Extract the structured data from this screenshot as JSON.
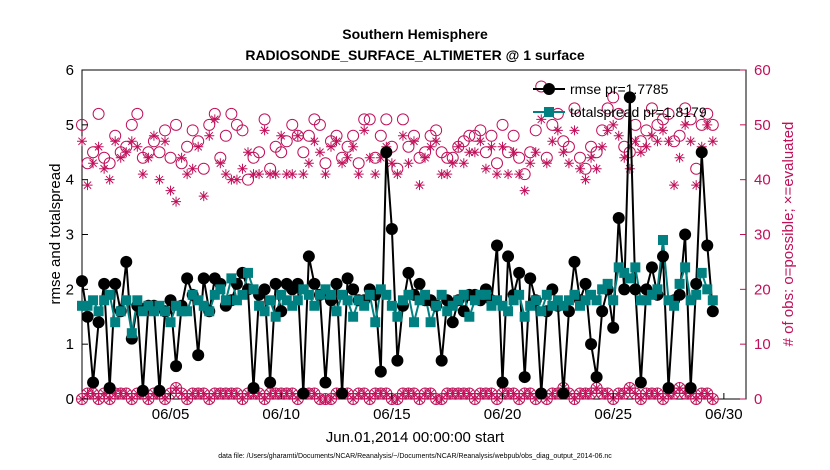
{
  "chart_data": {
    "type": "line",
    "title": "Southern Hemisphere",
    "subtitle": "RADIOSONDE_SURFACE_ALTIMETER @ 1 surface",
    "xlabel": "Jun.01,2014 00:00:00 start",
    "ylabel_left": "rmse and totalspread",
    "ylabel_right": "# of obs: o=possible; ×=evaluated",
    "footer": "data file: /Users/gharamti/Documents/NCAR/Reanalysis/~/Documents/NCAR/Reanalysis/webpub/obs_diag_output_2014-06.nc",
    "xlim": [
      1,
      31
    ],
    "ylim_left": [
      0,
      6
    ],
    "ylim_right": [
      0,
      60
    ],
    "x_ticks": [
      5,
      10,
      15,
      20,
      25,
      30
    ],
    "x_tick_labels": [
      "06/05",
      "06/10",
      "06/15",
      "06/20",
      "06/25",
      "06/30"
    ],
    "y_ticks_left": [
      "0",
      "1",
      "2",
      "3",
      "4",
      "5",
      "6"
    ],
    "y_ticks_right": [
      "0",
      "10",
      "20",
      "30",
      "40",
      "50",
      "60"
    ],
    "legend_position": "top-right",
    "colors": {
      "rmse": "#000000",
      "spread": "#008080",
      "obs": "#c0105a"
    },
    "rmse": {
      "name": "rmse pr=1.7785",
      "values": [
        2.15,
        1.5,
        0.3,
        1.4,
        2.1,
        0.2,
        2.1,
        1.6,
        2.5,
        1.1,
        1.7,
        0.15,
        1.7,
        1.7,
        0.15,
        1.6,
        1.8,
        0.6,
        1.7,
        2.2,
        1.9,
        0.8,
        2.2,
        1.6,
        2.2,
        2.1,
        1.7,
        1.8,
        2.1,
        2.3,
        2.0,
        0.2,
        1.9,
        2.0,
        0.3,
        2.1,
        1.6,
        2.1,
        2.0,
        2.1,
        0.1,
        2.6,
        2.1,
        1.9,
        0.3,
        1.8,
        2.1,
        0.1,
        2.2,
        2.0,
        1.8,
        1.8,
        2.0,
        1.9,
        0.5,
        4.5,
        3.1,
        0.7,
        1.7,
        2.3,
        1.9,
        2.1,
        1.8,
        1.8,
        1.7,
        0.7,
        1.8,
        1.4,
        1.8,
        1.6,
        1.9,
        1.9,
        1.8,
        2.0,
        1.8,
        2.8,
        0.3,
        2.6,
        1.9,
        2.3,
        0.4,
        2.2,
        1.8,
        0.1,
        1.6,
        2.0,
        1.7,
        0.1,
        1.6,
        2.5,
        1.8,
        2.1,
        1.0,
        0.4,
        1.6,
        2.0,
        1.3,
        3.3,
        2.0,
        5.5,
        2.0,
        0.3,
        2.0,
        2.4,
        1.9,
        2.6,
        0.2,
        1.8,
        1.9,
        3.0,
        0.2,
        2.1,
        4.5,
        2.8,
        1.6
      ],
      "stride_days": 0.25
    },
    "totalspread": {
      "name": "totalspread pr=1.8179",
      "values": [
        1.7,
        1.7,
        1.8,
        1.6,
        1.8,
        1.9,
        1.4,
        1.6,
        1.8,
        1.2,
        1.8,
        1.6,
        1.7,
        1.6,
        1.7,
        1.6,
        1.4,
        1.7,
        1.6,
        1.6,
        1.9,
        1.8,
        1.7,
        1.6,
        1.9,
        2.0,
        1.8,
        2.2,
        1.8,
        1.9,
        2.3,
        2.0,
        1.7,
        1.6,
        1.8,
        1.5,
        1.9,
        1.8,
        1.7,
        1.8,
        2.0,
        1.9,
        1.7,
        1.9,
        2.0,
        1.9,
        1.6,
        1.9,
        1.8,
        1.5,
        1.8,
        1.7,
        1.9,
        1.4,
        2.0,
        1.9,
        1.7,
        1.5,
        1.8,
        1.9,
        1.4,
        1.8,
        1.9,
        1.4,
        1.7,
        1.9,
        1.6,
        1.7,
        1.8,
        1.9,
        1.5,
        1.8,
        1.9,
        1.9,
        1.7,
        1.8,
        1.7,
        1.6,
        1.8,
        1.9,
        1.5,
        1.7,
        1.8,
        1.6,
        1.9,
        1.7,
        1.8,
        1.7,
        1.8,
        1.9,
        1.7,
        1.8,
        1.9,
        1.8,
        2.0,
        2.1,
        1.8,
        2.4,
        2.3,
        2.2,
        2.4,
        1.8,
        1.8,
        1.9,
        2.0,
        2.9,
        1.8,
        1.7,
        2.1,
        2.4,
        1.8,
        1.9,
        2.3,
        2.0,
        1.8
      ]
    },
    "obs_possible": [
      50,
      43,
      45,
      52,
      44,
      43,
      48,
      45,
      46,
      50,
      52,
      44,
      45,
      47,
      45,
      49,
      44,
      50,
      43,
      46,
      49,
      47,
      42,
      50,
      52,
      44,
      48,
      52,
      50,
      49,
      40,
      44,
      45,
      51,
      42,
      46,
      45,
      47,
      50,
      48,
      45,
      48,
      51,
      50,
      43,
      47,
      48,
      44,
      46,
      48,
      43,
      51,
      51,
      44,
      48,
      51,
      46,
      42,
      51,
      46,
      48,
      44,
      45,
      48,
      49,
      45,
      44,
      44,
      46,
      47,
      48,
      48,
      49,
      45,
      48,
      43,
      50,
      45,
      48,
      44,
      41,
      45,
      49,
      57,
      44,
      50,
      52,
      47,
      46,
      53,
      44,
      42,
      46,
      45,
      49,
      53,
      55,
      52,
      46,
      45,
      50,
      47,
      49,
      53,
      50,
      51,
      52,
      47,
      48,
      53,
      51,
      42,
      50,
      52,
      50
    ],
    "obs_evaluated": [
      47,
      39,
      43,
      46,
      42,
      40,
      47,
      44,
      45,
      47,
      46,
      41,
      44,
      48,
      40,
      47,
      38,
      36,
      44,
      41,
      42,
      46,
      37,
      48,
      51,
      43,
      41,
      40,
      40,
      42,
      45,
      41,
      41,
      49,
      41,
      41,
      48,
      41,
      41,
      48,
      41,
      43,
      47,
      45,
      41,
      46,
      47,
      43,
      44,
      46,
      41,
      49,
      44,
      41,
      44,
      46,
      43,
      41,
      48,
      43,
      47,
      39,
      44,
      46,
      47,
      41,
      41,
      43,
      46,
      43,
      45,
      45,
      47,
      42,
      46,
      41,
      46,
      41,
      45,
      41,
      38,
      43,
      45,
      51,
      43,
      47,
      49,
      45,
      43,
      49,
      42,
      40,
      44,
      42,
      46,
      49,
      50,
      48,
      44,
      42,
      47,
      45,
      46,
      48,
      47,
      49,
      47,
      39,
      44,
      50,
      47,
      39,
      46,
      50,
      47
    ],
    "obs_low_possible": [
      0,
      1,
      1,
      0,
      1,
      0,
      1,
      1,
      1,
      0,
      1,
      1,
      0,
      1,
      1,
      0,
      1,
      2,
      1,
      0,
      1,
      1,
      1,
      0,
      1,
      1,
      1,
      1,
      1,
      0,
      1,
      1,
      1,
      0,
      1,
      1,
      1,
      1,
      1,
      0,
      1,
      1,
      1,
      0,
      0,
      0,
      1,
      1,
      1,
      0,
      1,
      1,
      0,
      1,
      1,
      1,
      0,
      0,
      1,
      1,
      1,
      0,
      1,
      1,
      0,
      0,
      1,
      1,
      1,
      1,
      1,
      0,
      1,
      1,
      1,
      0,
      1,
      1,
      1,
      0,
      1,
      1,
      0,
      1,
      0,
      1,
      1,
      2,
      1,
      0,
      1,
      1,
      1,
      2,
      1,
      1,
      0,
      1,
      1,
      2,
      1,
      0,
      1,
      1,
      1,
      0,
      1,
      1,
      2,
      1,
      1,
      0,
      1,
      1,
      0
    ],
    "obs_low_evaluated": [
      0,
      1,
      1,
      0,
      1,
      0,
      1,
      1,
      1,
      0,
      1,
      1,
      0,
      1,
      1,
      0,
      1,
      2,
      1,
      0,
      1,
      1,
      1,
      0,
      1,
      1,
      1,
      1,
      1,
      0,
      1,
      1,
      1,
      0,
      1,
      1,
      1,
      1,
      1,
      0,
      1,
      1,
      1,
      0,
      0,
      0,
      1,
      1,
      1,
      0,
      1,
      1,
      0,
      1,
      1,
      1,
      0,
      0,
      1,
      1,
      1,
      0,
      1,
      1,
      0,
      0,
      1,
      1,
      1,
      1,
      1,
      0,
      1,
      1,
      1,
      0,
      1,
      1,
      1,
      0,
      1,
      1,
      0,
      1,
      0,
      1,
      1,
      2,
      1,
      0,
      1,
      1,
      1,
      2,
      1,
      1,
      0,
      1,
      1,
      2,
      1,
      0,
      1,
      1,
      1,
      0,
      1,
      1,
      2,
      1,
      1,
      0,
      1,
      1,
      0
    ]
  }
}
